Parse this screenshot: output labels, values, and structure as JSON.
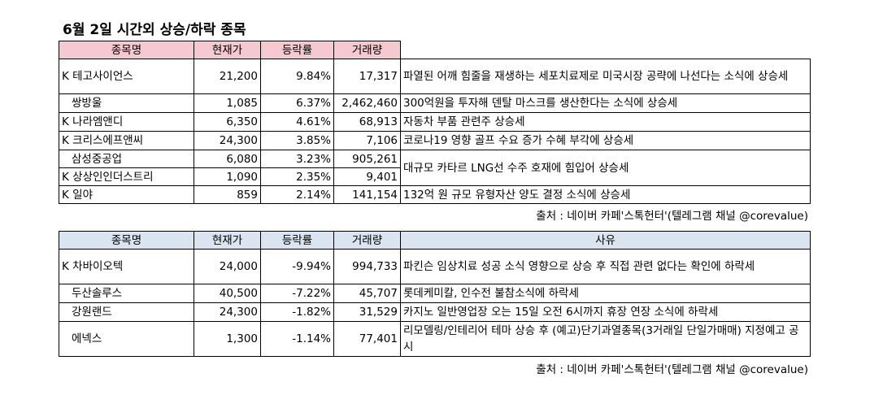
{
  "title": "6월 2일  시간외 상승/하락 종목",
  "rising": {
    "headers": [
      "종목명",
      "현재가",
      "등락률",
      "거래량"
    ],
    "rows": [
      {
        "name": "K 테고사이언스",
        "price": "21,200",
        "change": "9.84%",
        "volume": "17,317",
        "reason": "파열된 어깨 힘줄을 재생하는 세포치료제로 미국시장 공략에 나선다는 소식에 상승세"
      },
      {
        "name": "쌍방울",
        "price": "1,085",
        "change": "6.37%",
        "volume": "2,462,460",
        "reason": "300억원을 투자해 덴탈 마스크를 생산한다는 소식에 상승세"
      },
      {
        "name": "K 나라엠앤디",
        "price": "6,350",
        "change": "4.61%",
        "volume": "68,913",
        "reason": "자동차 부품 관련주 상승세"
      },
      {
        "name": "K 크리스에프앤씨",
        "price": "24,300",
        "change": "3.85%",
        "volume": "7,106",
        "reason": "코로나19 영향 골프 수요 증가 수혜 부각에 상승세"
      },
      {
        "name": "삼성중공업",
        "price": "6,080",
        "change": "3.23%",
        "volume": "905,261",
        "reason": "대규모 카타르 LNG선 수주 호재에 힘입어 상승세"
      },
      {
        "name": "K 상상인인더스트리",
        "price": "1,090",
        "change": "2.35%",
        "volume": "9,401",
        "reason": ""
      },
      {
        "name": "K 일야",
        "price": "859",
        "change": "2.14%",
        "volume": "141,154",
        "reason": "132억 원 규모 유형자산 양도 결정 소식에 상승세"
      }
    ],
    "source": "출처 : 네이버 카페'스톡헌터'(텔레그램 채널 @corevalue)"
  },
  "falling": {
    "headers": [
      "종목명",
      "현재가",
      "등락률",
      "거래량",
      "사유"
    ],
    "rows": [
      {
        "name": "K 차바이오텍",
        "price": "24,000",
        "change": "-9.94%",
        "volume": "994,733",
        "reason": "파킨슨 임상치료 성공 소식 영향으로 상승 후 직접 관련 없다는 확인에 하락세"
      },
      {
        "name": "두산솔루스",
        "price": "40,500",
        "change": "-7.22%",
        "volume": "45,707",
        "reason": "롯데케미칼, 인수전 불참소식에 하락세"
      },
      {
        "name": "강원랜드",
        "price": "24,300",
        "change": "-1.82%",
        "volume": "31,529",
        "reason": "카지노 일반영업장 오는 15일 오전 6시까지 휴장 연장 소식에 하락세"
      },
      {
        "name": "에넥스",
        "price": "1,300",
        "change": "-1.14%",
        "volume": "77,401",
        "reason": "리모델링/인테리어 테마 상승 후 (예고)단기과열종목(3거래일 단일가매매) 지정예고 공시"
      }
    ],
    "source": "출처 : 네이버 카페'스톡헌터'(텔레그램 채널 @corevalue)"
  }
}
